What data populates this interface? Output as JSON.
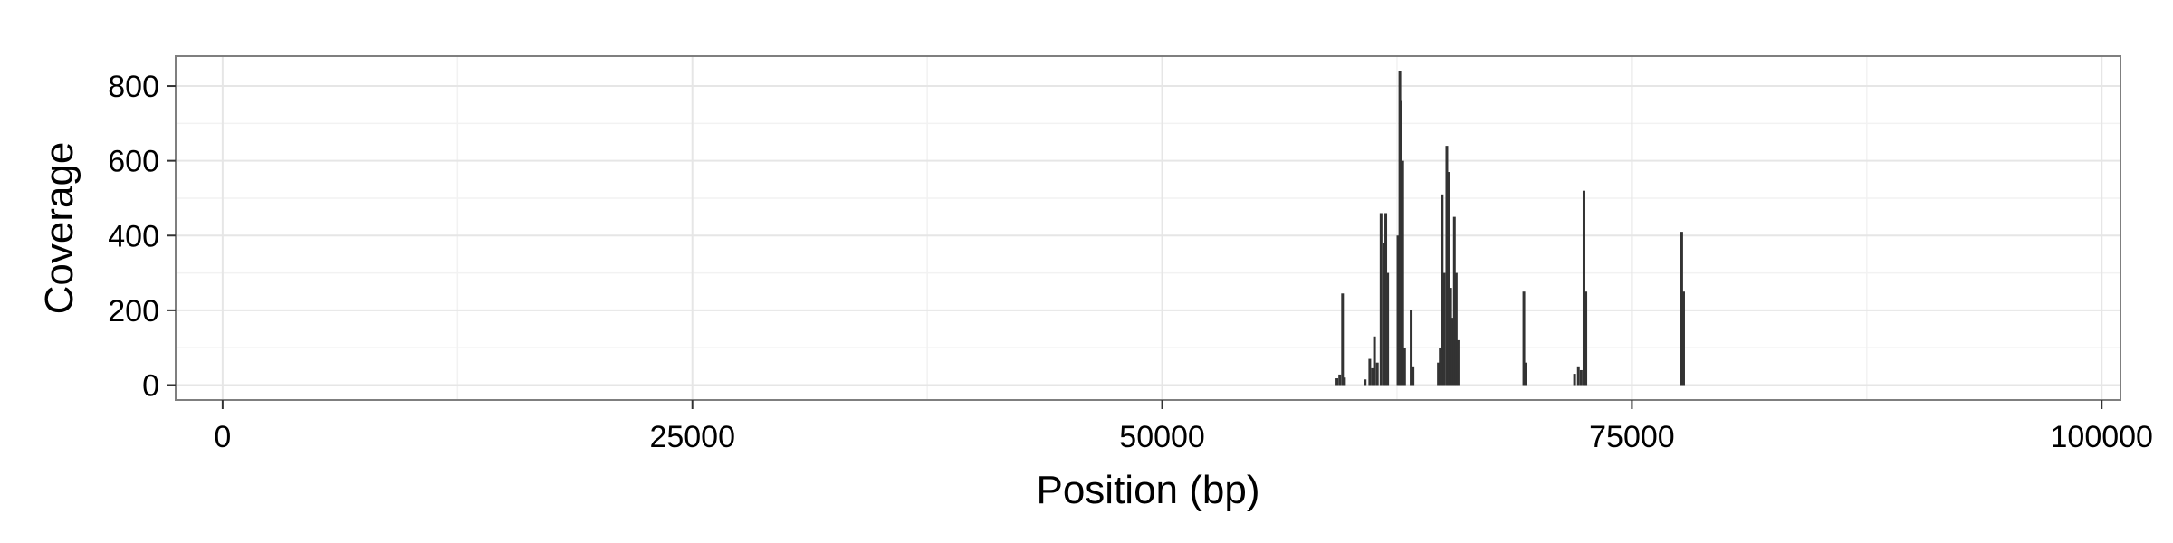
{
  "chart_data": {
    "type": "bar",
    "title": "",
    "xlabel": "Position (bp)",
    "ylabel": "Coverage",
    "xlim": [
      -2500,
      101000
    ],
    "ylim": [
      -40,
      880
    ],
    "x_ticks": [
      0,
      25000,
      50000,
      75000,
      100000
    ],
    "x_tick_labels": [
      "0",
      "25000",
      "50000",
      "75000",
      "100000"
    ],
    "y_ticks": [
      0,
      200,
      400,
      600,
      800
    ],
    "y_tick_labels": [
      "0",
      "200",
      "400",
      "600",
      "800"
    ],
    "grid": true,
    "legend": "none",
    "colors": {
      "bar": "#333333",
      "panel_border": "#7f7f7f",
      "grid_major": "#e6e6e6",
      "grid_minor": "#f2f2f2",
      "tick": "#333333"
    },
    "points": [
      {
        "x": 59300,
        "y": 18
      },
      {
        "x": 59450,
        "y": 28
      },
      {
        "x": 59600,
        "y": 245
      },
      {
        "x": 59700,
        "y": 20
      },
      {
        "x": 60800,
        "y": 15
      },
      {
        "x": 61050,
        "y": 70
      },
      {
        "x": 61200,
        "y": 45
      },
      {
        "x": 61300,
        "y": 130
      },
      {
        "x": 61450,
        "y": 60
      },
      {
        "x": 61650,
        "y": 460
      },
      {
        "x": 61800,
        "y": 380
      },
      {
        "x": 61900,
        "y": 460
      },
      {
        "x": 62000,
        "y": 300
      },
      {
        "x": 62550,
        "y": 400
      },
      {
        "x": 62650,
        "y": 840
      },
      {
        "x": 62700,
        "y": 760
      },
      {
        "x": 62800,
        "y": 600
      },
      {
        "x": 62900,
        "y": 100
      },
      {
        "x": 63250,
        "y": 200
      },
      {
        "x": 63350,
        "y": 50
      },
      {
        "x": 64700,
        "y": 60
      },
      {
        "x": 64800,
        "y": 100
      },
      {
        "x": 64900,
        "y": 510
      },
      {
        "x": 65000,
        "y": 300
      },
      {
        "x": 65150,
        "y": 640
      },
      {
        "x": 65250,
        "y": 570
      },
      {
        "x": 65350,
        "y": 260
      },
      {
        "x": 65450,
        "y": 180
      },
      {
        "x": 65550,
        "y": 450
      },
      {
        "x": 65650,
        "y": 300
      },
      {
        "x": 65750,
        "y": 120
      },
      {
        "x": 69250,
        "y": 250
      },
      {
        "x": 69350,
        "y": 60
      },
      {
        "x": 71950,
        "y": 30
      },
      {
        "x": 72150,
        "y": 50
      },
      {
        "x": 72300,
        "y": 40
      },
      {
        "x": 72450,
        "y": 520
      },
      {
        "x": 72550,
        "y": 250
      },
      {
        "x": 77650,
        "y": 410
      },
      {
        "x": 77750,
        "y": 250
      }
    ]
  }
}
